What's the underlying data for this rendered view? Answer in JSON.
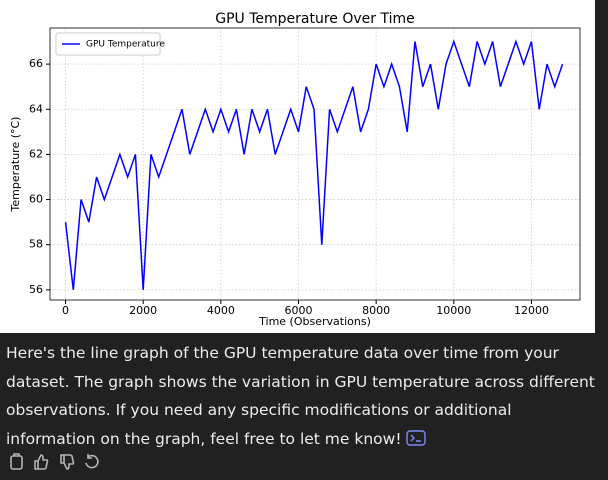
{
  "chart_data": {
    "type": "line",
    "title": "GPU Temperature Over Time",
    "xlabel": "Time (Observations)",
    "ylabel": "Temperature (°C)",
    "x": [
      0,
      200,
      400,
      600,
      800,
      1000,
      1200,
      1400,
      1600,
      1800,
      2000,
      2200,
      2400,
      2600,
      2800,
      3000,
      3200,
      3400,
      3600,
      3800,
      4000,
      4200,
      4400,
      4600,
      4800,
      5000,
      5200,
      5400,
      5600,
      5800,
      6000,
      6200,
      6400,
      6600,
      6800,
      7000,
      7200,
      7400,
      7600,
      7800,
      8000,
      8200,
      8400,
      8600,
      8800,
      9000,
      9200,
      9400,
      9600,
      9800,
      10000,
      10200,
      10400,
      10600,
      10800,
      11000,
      11200,
      11400,
      11600,
      11800,
      12000,
      12200,
      12400,
      12600,
      12800
    ],
    "series": [
      {
        "name": "GPU Temperature",
        "color": "#0000ff",
        "values": [
          59,
          56,
          60,
          59,
          61,
          60,
          61,
          62,
          61,
          62,
          56,
          62,
          61,
          62,
          63,
          64,
          62,
          63,
          64,
          63,
          64,
          63,
          64,
          62,
          64,
          63,
          64,
          62,
          63,
          64,
          63,
          65,
          64,
          58,
          64,
          63,
          64,
          65,
          63,
          64,
          66,
          65,
          66,
          65,
          63,
          67,
          65,
          66,
          64,
          66,
          67,
          66,
          65,
          67,
          66,
          67,
          65,
          66,
          67,
          66,
          67,
          64,
          66,
          65,
          66
        ]
      }
    ],
    "xlim": [
      -400,
      13250
    ],
    "ylim": [
      55.55,
      67.6
    ],
    "xticks": [
      0,
      2000,
      4000,
      6000,
      8000,
      10000,
      12000
    ],
    "yticks": [
      56,
      58,
      60,
      62,
      64,
      66
    ],
    "grid": true,
    "legend": "upper left"
  },
  "message": {
    "text": "Here's the line graph of the GPU temperature data over time from your dataset. The graph shows the variation in GPU temperature across different observations. If you need any specific modifications or additional information on the graph, feel free to let me know!"
  }
}
